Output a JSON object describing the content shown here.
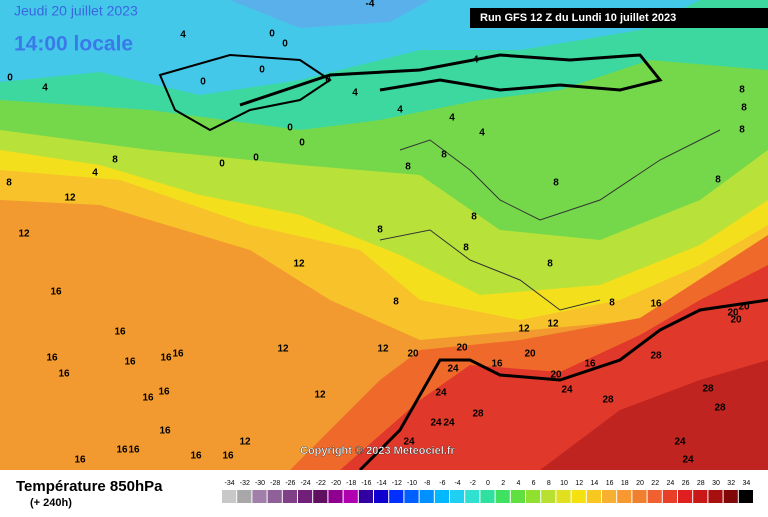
{
  "header": {
    "date": "Jeudi 20 juillet 2023",
    "time": "14:00 locale",
    "run": "Run GFS 12 Z du Lundi 10 juillet 2023"
  },
  "footer": {
    "title": "Température 850hPa",
    "subtitle": "(+ 240h)",
    "copyright": "Copyright © 2023 Meteociel.fr"
  },
  "scale": {
    "values": [
      -34,
      -32,
      -30,
      -28,
      -26,
      -24,
      -22,
      -20,
      -18,
      -16,
      -14,
      -12,
      -10,
      -8,
      -6,
      -4,
      -2,
      0,
      2,
      4,
      6,
      8,
      10,
      12,
      14,
      16,
      18,
      20,
      22,
      24,
      26,
      28,
      30,
      32,
      34
    ],
    "colors": [
      "#c8c8c8",
      "#a8a8a8",
      "#a080a8",
      "#906098",
      "#804088",
      "#702078",
      "#601060",
      "#900090",
      "#b000b0",
      "#3000a0",
      "#1000d0",
      "#0030ff",
      "#0060ff",
      "#0090ff",
      "#00b8ff",
      "#20d0f0",
      "#30e0d0",
      "#30e0a0",
      "#40e060",
      "#60e040",
      "#90e030",
      "#b8e030",
      "#e0e020",
      "#f5e010",
      "#f8c820",
      "#f8b030",
      "#f89830",
      "#f08030",
      "#f06030",
      "#e84028",
      "#e02020",
      "#c81818",
      "#a81010",
      "#800808",
      "#000000"
    ]
  },
  "map": {
    "contour_labels": [
      -4,
      4,
      0,
      0,
      -4,
      0,
      4,
      0,
      0,
      0,
      4,
      4,
      4,
      4,
      0,
      0,
      0,
      0,
      8,
      4,
      8,
      12,
      8,
      8,
      8,
      8,
      8,
      8,
      8,
      8,
      8,
      8,
      8,
      8,
      8,
      12,
      12,
      16,
      16,
      16,
      16,
      16,
      16,
      16,
      16,
      16,
      12,
      12,
      12,
      12,
      12,
      20,
      20,
      20,
      16,
      16,
      20,
      24,
      24,
      24,
      28,
      28,
      28,
      28,
      28,
      24,
      24,
      24,
      24,
      24,
      20,
      20,
      20,
      16,
      16,
      16,
      16,
      16,
      16,
      12,
      16
    ]
  }
}
